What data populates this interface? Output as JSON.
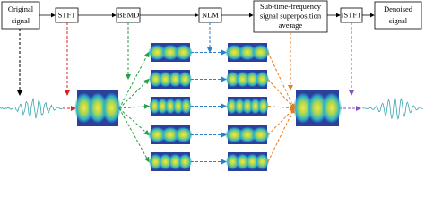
{
  "nodes": [
    {
      "label": [
        "Original",
        "signal"
      ]
    },
    {
      "label": [
        "STFT"
      ]
    },
    {
      "label": [
        "BEMD"
      ]
    },
    {
      "label": [
        "NLM"
      ]
    },
    {
      "label": [
        "Sub-time-frequency",
        "signal superposition",
        "average"
      ]
    },
    {
      "label": [
        "ISTFT"
      ]
    },
    {
      "label": [
        "Denoised",
        "signal"
      ]
    }
  ]
}
